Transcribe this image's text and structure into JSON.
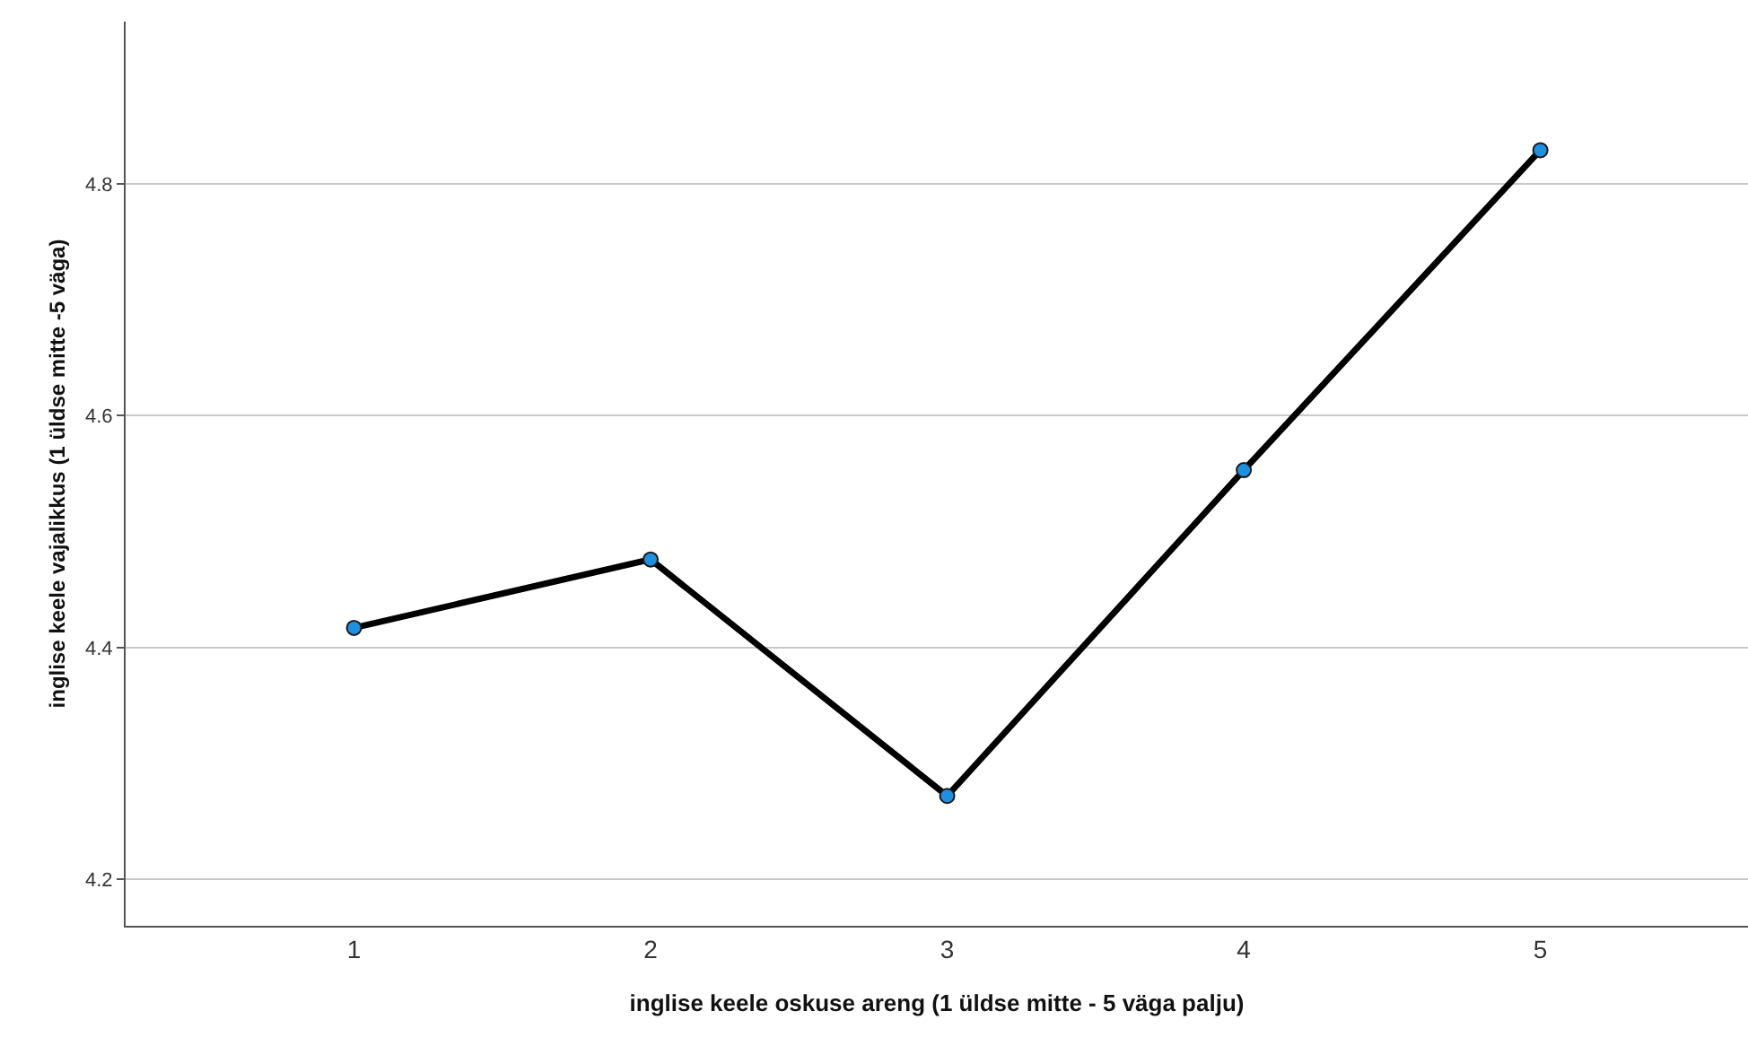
{
  "chart_data": {
    "type": "line",
    "xlabel": "inglise keele oskuse areng (1 üldse mitte - 5 väga palju)",
    "ylabel": "inglise keele vajalikkus (1 üldse mitte -5 väga)",
    "categories": [
      "1",
      "2",
      "3",
      "4",
      "5"
    ],
    "series": [
      {
        "color": "#000000",
        "colors": [
          "#1f8fe0",
          "#1f8fe0",
          "#1f8fe0",
          "#1f8fe0",
          "#1f8fe0"
        ],
        "values": [
          4.417,
          4.476,
          4.272,
          4.553,
          4.829
        ]
      }
    ],
    "ylim": [
      4.16,
      4.94
    ],
    "yticks": [
      4.2,
      4.4,
      4.6,
      4.8
    ],
    "grid": "y",
    "marker": "circle",
    "line_style": "solid"
  }
}
